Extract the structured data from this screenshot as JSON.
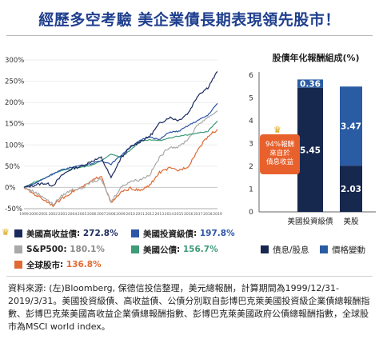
{
  "title": "經歷多空考驗 美企業債長期表現領先股市！",
  "chart_data": [
    {
      "type": "line",
      "x": [
        "1999",
        "2000",
        "2001",
        "2002",
        "2003",
        "2004",
        "2005",
        "2006",
        "2007",
        "2008",
        "2009",
        "2010",
        "2011",
        "2012",
        "2013",
        "2014",
        "2015",
        "2016",
        "2017",
        "2018",
        "2019"
      ],
      "yticks": [
        "300%",
        "250%",
        "200%",
        "150%",
        "100%",
        "50%",
        "0%",
        "-50%"
      ],
      "ylim": [
        -50,
        300
      ],
      "series": [
        {
          "name": "美國高收益債",
          "end_label": "272.8%",
          "color": "#1b2a5e",
          "values": [
            0,
            5,
            10,
            5,
            30,
            45,
            50,
            62,
            70,
            22,
            68,
            95,
            108,
            120,
            150,
            165,
            158,
            176,
            218,
            235,
            272.8
          ]
        },
        {
          "name": "美國投資級債",
          "end_label": "197.8%",
          "color": "#2c56a7",
          "values": [
            0,
            8,
            20,
            32,
            42,
            48,
            52,
            56,
            63,
            55,
            75,
            95,
            110,
            120,
            112,
            130,
            132,
            146,
            158,
            170,
            197.8
          ]
        },
        {
          "name": "S&P500",
          "end_label": "180.1%",
          "color": "#a9a9a9",
          "values": [
            0,
            -10,
            -22,
            -40,
            -18,
            -5,
            -2,
            14,
            18,
            -34,
            0,
            15,
            18,
            30,
            70,
            95,
            95,
            115,
            148,
            165,
            180.1
          ]
        },
        {
          "name": "美國公債",
          "end_label": "156.7%",
          "color": "#3f9b78",
          "values": [
            0,
            12,
            20,
            33,
            40,
            44,
            48,
            52,
            63,
            78,
            72,
            88,
            108,
            112,
            110,
            116,
            121,
            124,
            128,
            132,
            156.7
          ]
        },
        {
          "name": "全球股市",
          "end_label": "136.8%",
          "color": "#e06a34",
          "values": [
            0,
            -15,
            -28,
            -42,
            -25,
            -10,
            0,
            15,
            28,
            -38,
            -12,
            -2,
            -8,
            5,
            35,
            45,
            40,
            50,
            90,
            120,
            136.8
          ]
        }
      ]
    },
    {
      "type": "bar",
      "title": "股債年化報酬組成(%)",
      "categories": [
        "美國投資級債",
        "美股"
      ],
      "yticks": [
        "6",
        "5",
        "4",
        "3",
        "2",
        "1",
        "0"
      ],
      "ylim": [
        0,
        6
      ],
      "series": [
        {
          "name": "債息/股息",
          "color": "#17284f",
          "values": [
            5.45,
            2.03
          ]
        },
        {
          "name": "價格變動",
          "color": "#2a5ca3",
          "values": [
            0.36,
            3.47
          ]
        }
      ],
      "annotation": [
        "94%報酬",
        "來自於",
        "債息收益"
      ]
    }
  ],
  "footnote": "資料來源: (左)Bloomberg, 保德信投信整理，美元總報酬，計算期間為1999/12/31-2019/3/31。美國投資級債、高收益債、公債分別取自彭博巴克萊美國投資級企業債總報酬指數、彭博巴克萊美國高收益企業債總報酬指數、彭博巴克萊美國政府公債總報酬指數，全球股市為MSCI world index。"
}
